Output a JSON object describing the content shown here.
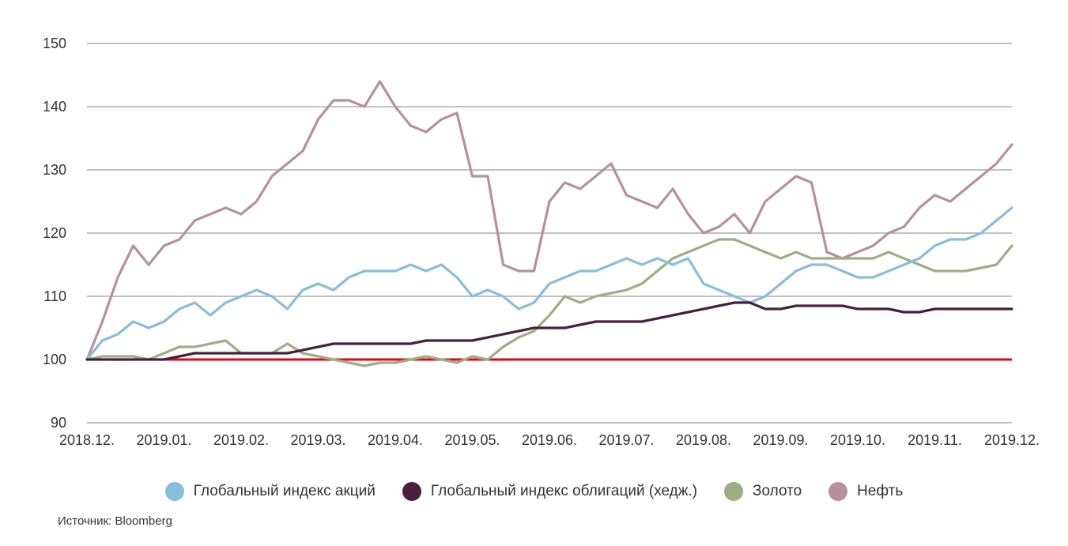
{
  "source": "Источник: Bloomberg",
  "chart_data": {
    "type": "line",
    "title": "",
    "xlabel": "",
    "ylabel": "",
    "ylim": [
      90,
      150
    ],
    "yticks": [
      90,
      100,
      110,
      120,
      130,
      140,
      150
    ],
    "xticks": [
      "2018.12.",
      "2019.01.",
      "2019.02.",
      "2019.03.",
      "2019.04.",
      "2019.05.",
      "2019.06.",
      "2019.07.",
      "2019.08.",
      "2019.09.",
      "2019.10.",
      "2019.11.",
      "2019.12."
    ],
    "grid": "horizontal",
    "legend_position": "bottom",
    "baseline": {
      "value": 100,
      "color": "#e30613"
    },
    "x": [
      0,
      0.2,
      0.4,
      0.6,
      0.8,
      1,
      1.2,
      1.4,
      1.6,
      1.8,
      2,
      2.2,
      2.4,
      2.6,
      2.8,
      3,
      3.2,
      3.4,
      3.6,
      3.8,
      4,
      4.2,
      4.4,
      4.6,
      4.8,
      5,
      5.2,
      5.4,
      5.6,
      5.8,
      6,
      6.2,
      6.4,
      6.6,
      6.8,
      7,
      7.2,
      7.4,
      7.6,
      7.8,
      8,
      8.2,
      8.4,
      8.6,
      8.8,
      9,
      9.2,
      9.4,
      9.6,
      9.8,
      10,
      10.2,
      10.4,
      10.6,
      10.8,
      11,
      11.2,
      11.4,
      11.6,
      11.8,
      12
    ],
    "series": [
      {
        "name": "Глобальный индекс акций",
        "color": "#86bedd",
        "values": [
          100,
          103,
          104,
          106,
          105,
          106,
          108,
          109,
          107,
          109,
          110,
          111,
          110,
          108,
          111,
          112,
          111,
          113,
          114,
          114,
          114,
          115,
          114,
          115,
          113,
          110,
          111,
          110,
          108,
          109,
          112,
          113,
          114,
          114,
          115,
          116,
          115,
          116,
          115,
          116,
          112,
          111,
          110,
          109,
          110,
          112,
          114,
          115,
          115,
          114,
          113,
          113,
          114,
          115,
          116,
          118,
          119,
          119,
          120,
          122,
          124
        ]
      },
      {
        "name": "Глобальный индекс облигаций (хедж.)",
        "color": "#4a1f3d",
        "values": [
          100,
          100,
          100,
          100,
          100,
          100,
          100.5,
          101,
          101,
          101,
          101,
          101,
          101,
          101,
          101.5,
          102,
          102.5,
          102.5,
          102.5,
          102.5,
          102.5,
          102.5,
          103,
          103,
          103,
          103,
          103.5,
          104,
          104.5,
          105,
          105,
          105,
          105.5,
          106,
          106,
          106,
          106,
          106.5,
          107,
          107.5,
          108,
          108.5,
          109,
          109,
          108,
          108,
          108.5,
          108.5,
          108.5,
          108.5,
          108,
          108,
          108,
          107.5,
          107.5,
          108,
          108,
          108,
          108,
          108,
          108
        ]
      },
      {
        "name": "Золото",
        "color": "#9caf84",
        "values": [
          100,
          100.5,
          100.5,
          100.5,
          100,
          101,
          102,
          102,
          102.5,
          103,
          101,
          101,
          101,
          102.5,
          101,
          100.5,
          100,
          99.5,
          99,
          99.5,
          99.5,
          100,
          100.5,
          100,
          99.5,
          100.5,
          100,
          102,
          103.5,
          104.5,
          107,
          110,
          109,
          110,
          110.5,
          111,
          112,
          114,
          116,
          117,
          118,
          119,
          119,
          118,
          117,
          116,
          117,
          116,
          116,
          116,
          116,
          116,
          117,
          116,
          115,
          114,
          114,
          114,
          114.5,
          115,
          118
        ]
      },
      {
        "name": "Нефть",
        "color": "#b8909a",
        "values": [
          100,
          106,
          113,
          118,
          115,
          118,
          119,
          122,
          123,
          124,
          123,
          125,
          129,
          131,
          133,
          138,
          141,
          141,
          140,
          144,
          140,
          137,
          136,
          138,
          139,
          129,
          129,
          115,
          114,
          114,
          125,
          128,
          127,
          129,
          131,
          126,
          125,
          124,
          127,
          123,
          120,
          121,
          123,
          120,
          125,
          127,
          129,
          128,
          117,
          116,
          117,
          118,
          120,
          121,
          124,
          126,
          125,
          127,
          129,
          131,
          134
        ]
      }
    ]
  }
}
